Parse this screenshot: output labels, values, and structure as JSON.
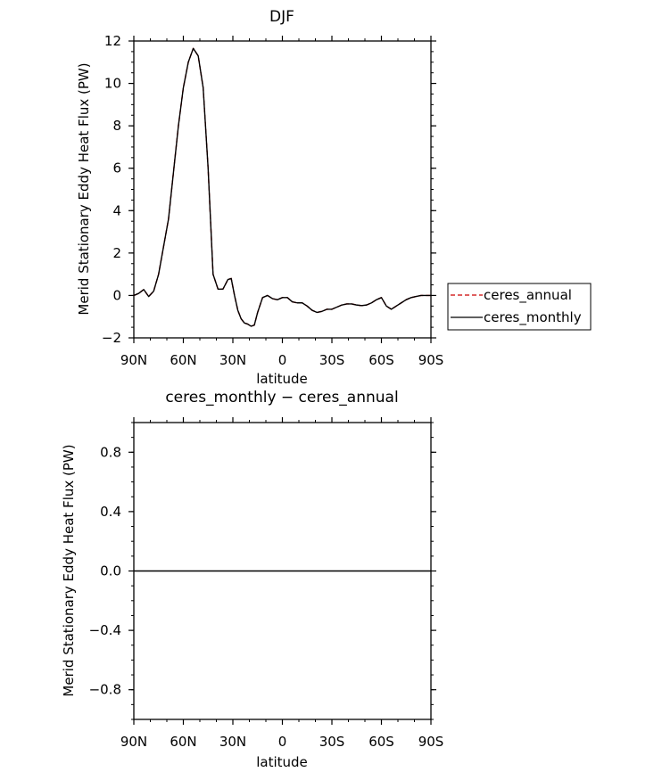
{
  "chart_data": [
    {
      "type": "line",
      "title": "DJF",
      "xlabel": "latitude",
      "ylabel": "Merid Stationary Eddy Heat Flux (PW)",
      "xlim": [
        90,
        -90
      ],
      "ylim": [
        -2,
        12
      ],
      "x_ticks": [
        90,
        60,
        30,
        0,
        -30,
        -60,
        -90
      ],
      "x_tick_labels": [
        "90N",
        "60N",
        "30N",
        "0",
        "30S",
        "60S",
        "90S"
      ],
      "y_ticks": [
        -2,
        0,
        2,
        4,
        6,
        8,
        10,
        12
      ],
      "y_tick_labels": [
        "−2",
        "0",
        "2",
        "4",
        "6",
        "8",
        "10",
        "12"
      ],
      "legend": {
        "placement": "right",
        "entries": [
          {
            "name": "ceres_annual",
            "color": "#cc0000",
            "dash": "dashed"
          },
          {
            "name": "ceres_monthly",
            "color": "#000000",
            "dash": "solid"
          }
        ]
      },
      "series": [
        {
          "name": "ceres_annual",
          "color": "#cc0000",
          "x": [
            90,
            87,
            84,
            81,
            78,
            75,
            72,
            69,
            66,
            63,
            60,
            57,
            54,
            51,
            48,
            45,
            42,
            39,
            36,
            33,
            31,
            29,
            27,
            25,
            23,
            21,
            19,
            17,
            15,
            12,
            9,
            6,
            3,
            0,
            -3,
            -6,
            -9,
            -12,
            -15,
            -18,
            -21,
            -24,
            -27,
            -30,
            -33,
            -36,
            -39,
            -42,
            -45,
            -48,
            -51,
            -54,
            -57,
            -60,
            -63,
            -66,
            -69,
            -72,
            -75,
            -78,
            -81,
            -84,
            -87,
            -90
          ],
          "y": [
            0.0,
            0.1,
            0.28,
            -0.05,
            0.2,
            1.0,
            2.3,
            3.6,
            5.8,
            8.0,
            9.8,
            11.0,
            11.65,
            11.3,
            9.8,
            6.0,
            1.0,
            0.3,
            0.3,
            0.75,
            0.8,
            0.0,
            -0.7,
            -1.1,
            -1.3,
            -1.35,
            -1.45,
            -1.4,
            -0.8,
            -0.1,
            0.0,
            -0.15,
            -0.2,
            -0.1,
            -0.1,
            -0.3,
            -0.35,
            -0.35,
            -0.5,
            -0.7,
            -0.8,
            -0.75,
            -0.65,
            -0.65,
            -0.55,
            -0.45,
            -0.4,
            -0.4,
            -0.45,
            -0.48,
            -0.45,
            -0.35,
            -0.2,
            -0.1,
            -0.5,
            -0.65,
            -0.5,
            -0.35,
            -0.2,
            -0.1,
            -0.05,
            0.0,
            0.0,
            0.0
          ]
        },
        {
          "name": "ceres_monthly",
          "color": "#000000",
          "x": [
            90,
            87,
            84,
            81,
            78,
            75,
            72,
            69,
            66,
            63,
            60,
            57,
            54,
            51,
            48,
            45,
            42,
            39,
            36,
            33,
            31,
            29,
            27,
            25,
            23,
            21,
            19,
            17,
            15,
            12,
            9,
            6,
            3,
            0,
            -3,
            -6,
            -9,
            -12,
            -15,
            -18,
            -21,
            -24,
            -27,
            -30,
            -33,
            -36,
            -39,
            -42,
            -45,
            -48,
            -51,
            -54,
            -57,
            -60,
            -63,
            -66,
            -69,
            -72,
            -75,
            -78,
            -81,
            -84,
            -87,
            -90
          ],
          "y": [
            0.0,
            0.1,
            0.28,
            -0.05,
            0.2,
            1.0,
            2.3,
            3.6,
            5.8,
            8.0,
            9.8,
            11.0,
            11.65,
            11.3,
            9.8,
            6.0,
            1.0,
            0.3,
            0.3,
            0.75,
            0.8,
            0.0,
            -0.7,
            -1.1,
            -1.3,
            -1.35,
            -1.45,
            -1.4,
            -0.8,
            -0.1,
            0.0,
            -0.15,
            -0.2,
            -0.1,
            -0.1,
            -0.3,
            -0.35,
            -0.35,
            -0.5,
            -0.7,
            -0.8,
            -0.75,
            -0.65,
            -0.65,
            -0.55,
            -0.45,
            -0.4,
            -0.4,
            -0.45,
            -0.48,
            -0.45,
            -0.35,
            -0.2,
            -0.1,
            -0.5,
            -0.65,
            -0.5,
            -0.35,
            -0.2,
            -0.1,
            -0.05,
            0.0,
            0.0,
            0.0
          ]
        }
      ]
    },
    {
      "type": "line",
      "title": "ceres_monthly − ceres_annual",
      "xlabel": "latitude",
      "ylabel": "Merid Stationary Eddy Heat Flux (PW)",
      "xlim": [
        90,
        -90
      ],
      "ylim": [
        -1,
        1
      ],
      "x_ticks": [
        90,
        60,
        30,
        0,
        -30,
        -60,
        -90
      ],
      "x_tick_labels": [
        "90N",
        "60N",
        "30N",
        "0",
        "30S",
        "60S",
        "90S"
      ],
      "y_ticks": [
        -0.8,
        -0.4,
        0.0,
        0.4,
        0.8
      ],
      "y_tick_labels": [
        "−0.8",
        "−0.4",
        "0.0",
        "0.4",
        "0.8"
      ],
      "series": [
        {
          "color": "#000000",
          "x": [
            90,
            -90
          ],
          "y": [
            0.0,
            0.0
          ]
        }
      ]
    }
  ]
}
